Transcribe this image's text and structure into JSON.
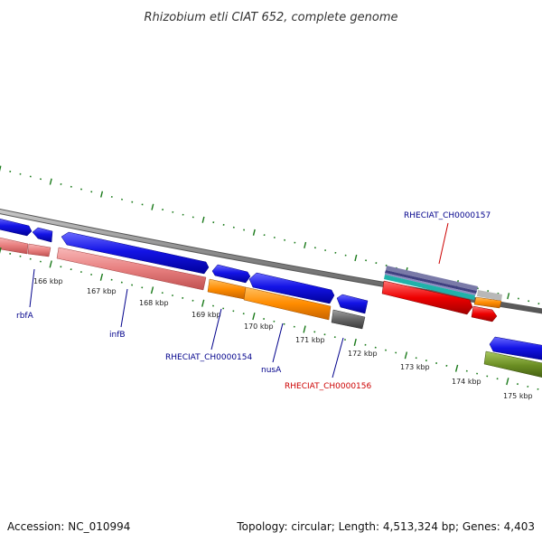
{
  "title": "Rhizobium etli CIAT 652, complete genome",
  "footer": {
    "accession": "Accession: NC_010994",
    "summary": "Topology: circular; Length: 4,513,324 bp; Genes: 4,403"
  },
  "scale_labels": [
    "166 kbp",
    "167 kbp",
    "168 kbp",
    "169 kbp",
    "170 kbp",
    "171 kbp",
    "172 kbp",
    "173 kbp",
    "174 kbp",
    "175 kbp"
  ],
  "gene_labels": [
    {
      "text": "rbfA",
      "color": "#00008b"
    },
    {
      "text": "infB",
      "color": "#00008b"
    },
    {
      "text": "RHECIAT_CH0000154",
      "color": "#00008b"
    },
    {
      "text": "nusA",
      "color": "#00008b"
    },
    {
      "text": "RHECIAT_CH0000156",
      "color": "#00008b"
    },
    {
      "text": "RHECIAT_CH0000157",
      "color": "#cc0000"
    }
  ],
  "feature_colors": {
    "cds": "#1010e0",
    "gene": "#e88080",
    "orange": "#ff8c00",
    "gray": "#666666",
    "red": "#ee0000",
    "olive": "#6b8e23",
    "slate": "#7070a0",
    "teal": "#20b2aa",
    "backbone": "#888888",
    "ticks": "#1a7a1a"
  }
}
